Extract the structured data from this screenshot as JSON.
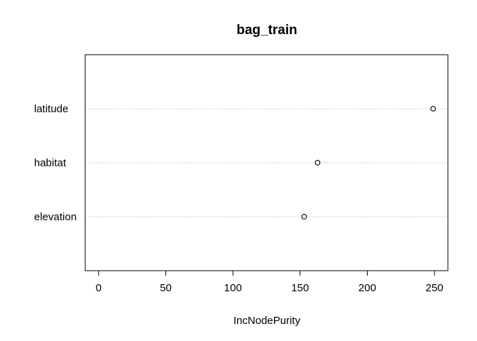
{
  "chart_data": {
    "type": "scatter",
    "title": "bag_train",
    "xlabel": "IncNodePurity",
    "ylabel": "",
    "xlim": [
      -10,
      260
    ],
    "x_ticks": [
      0,
      50,
      100,
      150,
      200,
      250
    ],
    "x_tick_labels": [
      "0",
      "50",
      "100",
      "150",
      "200",
      "250"
    ],
    "categories": [
      "latitude",
      "habitat",
      "elevation"
    ],
    "values": [
      249,
      163,
      153
    ],
    "grid": "dotted horizontal guide lines per variable",
    "legend": "none",
    "point_style": "open circle"
  }
}
